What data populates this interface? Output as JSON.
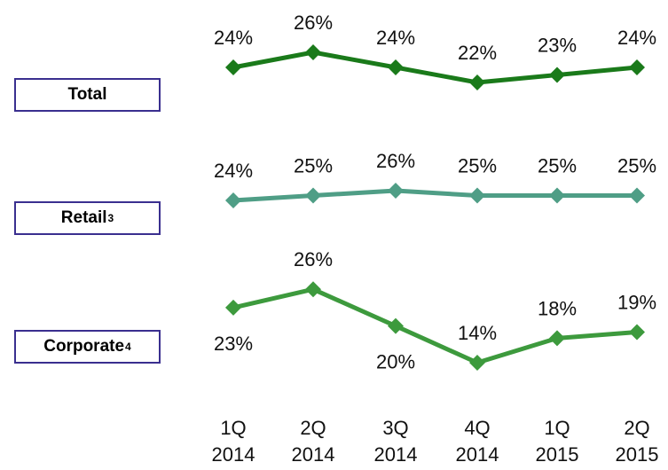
{
  "chart_data": {
    "type": "line",
    "categories": [
      "1Q 2014",
      "2Q 2014",
      "3Q 2014",
      "4Q 2014",
      "1Q 2015",
      "2Q 2015"
    ],
    "tick_labels": [
      [
        "1Q",
        "2014"
      ],
      [
        "2Q",
        "2014"
      ],
      [
        "3Q",
        "2014"
      ],
      [
        "4Q",
        "2014"
      ],
      [
        "1Q",
        "2015"
      ],
      [
        "2Q",
        "2015"
      ]
    ],
    "series": [
      {
        "name": "Total",
        "sup": "",
        "values": [
          24,
          26,
          24,
          22,
          23,
          24
        ],
        "labels": [
          "24%",
          "26%",
          "24%",
          "22%",
          "23%",
          "24%"
        ],
        "color": "#1a7a1a"
      },
      {
        "name": "Retail",
        "sup": "3",
        "values": [
          24,
          25,
          26,
          25,
          25,
          25
        ],
        "labels": [
          "24%",
          "25%",
          "26%",
          "25%",
          "25%",
          "25%"
        ],
        "color": "#4f9e86"
      },
      {
        "name": "Corporate",
        "sup": "4",
        "values": [
          23,
          26,
          20,
          14,
          18,
          19
        ],
        "labels": [
          "23%",
          "26%",
          "20%",
          "14%",
          "18%",
          "19%"
        ],
        "color": "#3d9a3d"
      }
    ]
  }
}
